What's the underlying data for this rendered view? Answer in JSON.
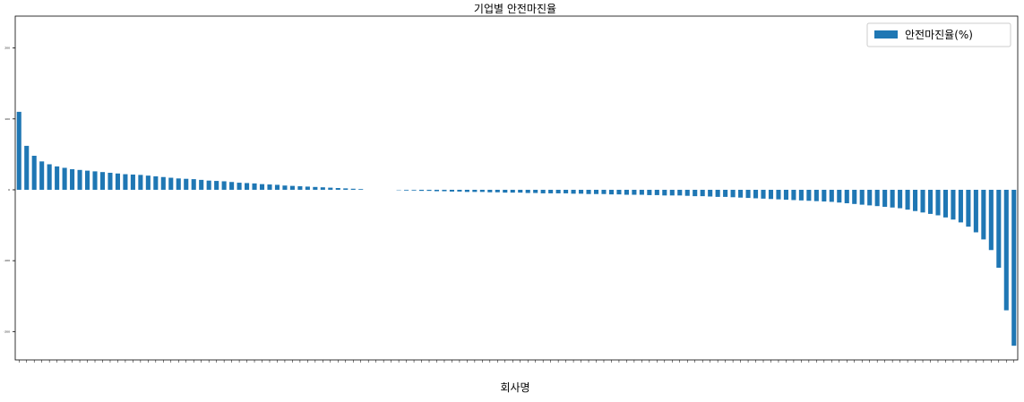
{
  "chart_data": {
    "type": "bar",
    "title": "기업별 안전마진율",
    "xlabel": "회사명",
    "color": "#1f77b4",
    "legend": "upper right",
    "ylim": [
      -240,
      245
    ],
    "yticks": [
      -200,
      -100,
      0,
      100,
      200
    ],
    "series": [
      {
        "name": "안전마진율(%)",
        "color": "#1f77b4",
        "values": [
          110,
          62,
          48,
          40,
          36,
          33,
          31,
          29,
          28,
          27,
          26,
          25,
          24,
          23,
          22,
          21.5,
          21,
          20,
          19,
          18,
          17,
          16,
          15.5,
          15,
          14,
          13,
          12.5,
          12,
          11,
          10,
          9.5,
          9,
          8,
          7.5,
          7,
          6,
          5.5,
          5,
          4.5,
          4,
          3.5,
          3,
          2.5,
          2,
          1.5,
          1,
          null,
          null,
          null,
          null,
          -0.5,
          -1,
          -1,
          -1.5,
          -1.5,
          -2,
          -2,
          -2.5,
          -2.5,
          -3,
          -3,
          -3,
          -3.5,
          -3.5,
          -4,
          -4,
          -4,
          -4.5,
          -4.5,
          -5,
          -5,
          -5,
          -5,
          -5.5,
          -5.5,
          -6,
          -6,
          -6,
          -6.5,
          -6.5,
          -7,
          -7,
          -7,
          -7.5,
          -7.5,
          -8,
          -8,
          -8,
          -8.5,
          -9,
          -9,
          -9.5,
          -10,
          -10,
          -10.5,
          -11,
          -11.5,
          -12,
          -12.5,
          -13,
          -13.5,
          -14,
          -14.5,
          -15,
          -15.5,
          -16,
          -16.5,
          -17,
          -18,
          -19,
          -20,
          -21,
          -22,
          -23,
          -24,
          -25,
          -26,
          -28,
          -30,
          -32,
          -34,
          -36,
          -39,
          -42,
          -46,
          -52,
          -60,
          -70,
          -85,
          -110,
          -170,
          -220
        ]
      }
    ]
  }
}
